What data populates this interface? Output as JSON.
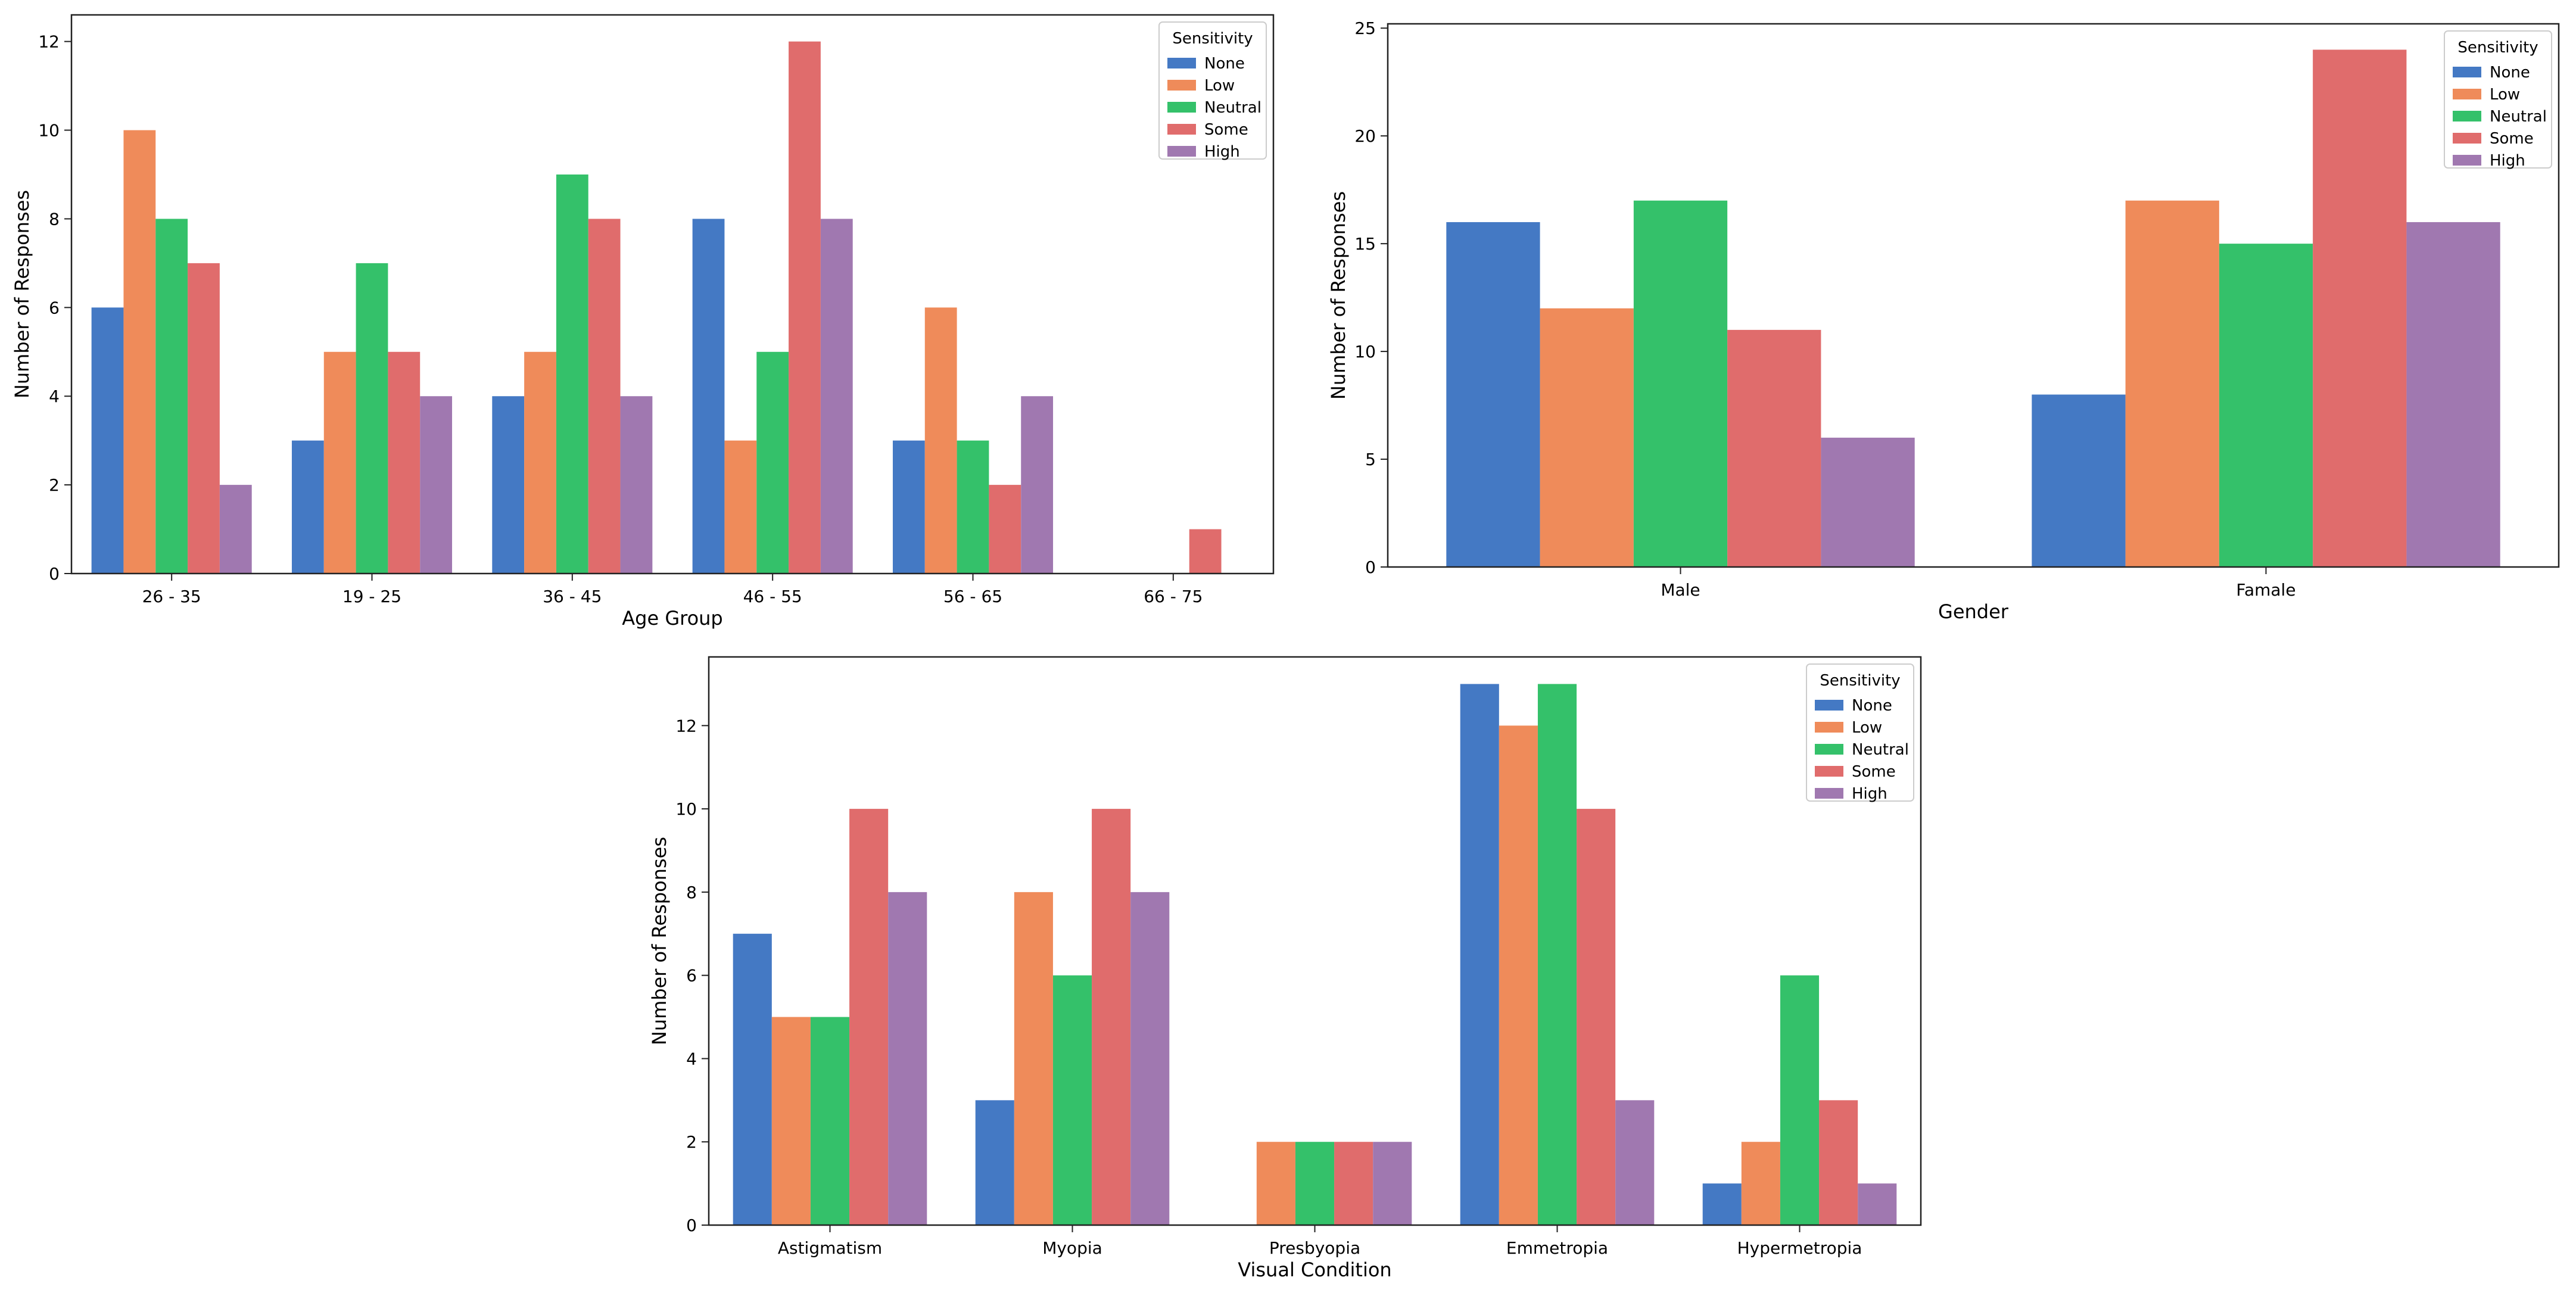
{
  "colors": {
    "None": "#4479c4",
    "Low": "#ef8b5a",
    "Neutral": "#34c16a",
    "Some": "#e06c6c",
    "High": "#a078b0"
  },
  "chart_data": [
    {
      "type": "bar",
      "xlabel": "Age Group",
      "ylabel": "Number of Responses",
      "ylim": [
        0,
        12.6
      ],
      "yticks": [
        0,
        2,
        4,
        6,
        8,
        10,
        12
      ],
      "grid": false,
      "legend_title": "Sensitivity",
      "legend_position": "top-right",
      "categories": [
        "26 - 35",
        "19 - 25",
        "36 - 45",
        "46 - 55",
        "56 - 65",
        "66 - 75"
      ],
      "series": [
        {
          "name": "None",
          "values": [
            6,
            3,
            4,
            8,
            3,
            0
          ]
        },
        {
          "name": "Low",
          "values": [
            10,
            5,
            5,
            3,
            6,
            0
          ]
        },
        {
          "name": "Neutral",
          "values": [
            8,
            7,
            9,
            5,
            3,
            0
          ]
        },
        {
          "name": "Some",
          "values": [
            7,
            5,
            8,
            12,
            2,
            1
          ]
        },
        {
          "name": "High",
          "values": [
            2,
            4,
            4,
            8,
            4,
            0
          ]
        }
      ]
    },
    {
      "type": "bar",
      "xlabel": "Gender",
      "ylabel": "Number of Responses",
      "ylim": [
        0,
        25.2
      ],
      "yticks": [
        0,
        5,
        10,
        15,
        20,
        25
      ],
      "grid": false,
      "legend_title": "Sensitivity",
      "legend_position": "top-right",
      "categories": [
        "Male",
        "Famale"
      ],
      "series": [
        {
          "name": "None",
          "values": [
            16,
            8
          ]
        },
        {
          "name": "Low",
          "values": [
            12,
            17
          ]
        },
        {
          "name": "Neutral",
          "values": [
            17,
            15
          ]
        },
        {
          "name": "Some",
          "values": [
            11,
            24
          ]
        },
        {
          "name": "High",
          "values": [
            6,
            16
          ]
        }
      ]
    },
    {
      "type": "bar",
      "xlabel": "Visual Condition",
      "ylabel": "Number of Responses",
      "ylim": [
        0,
        13.65
      ],
      "yticks": [
        0,
        2,
        4,
        6,
        8,
        10,
        12
      ],
      "grid": false,
      "legend_title": "Sensitivity",
      "legend_position": "top-right",
      "categories": [
        "Astigmatism",
        "Myopia",
        "Presbyopia",
        "Emmetropia",
        "Hypermetropia"
      ],
      "series": [
        {
          "name": "None",
          "values": [
            7,
            3,
            0,
            13,
            1
          ]
        },
        {
          "name": "Low",
          "values": [
            5,
            8,
            2,
            12,
            2
          ]
        },
        {
          "name": "Neutral",
          "values": [
            5,
            6,
            2,
            13,
            6
          ]
        },
        {
          "name": "Some",
          "values": [
            10,
            10,
            2,
            10,
            3
          ]
        },
        {
          "name": "High",
          "values": [
            8,
            8,
            2,
            3,
            1
          ]
        }
      ]
    }
  ]
}
